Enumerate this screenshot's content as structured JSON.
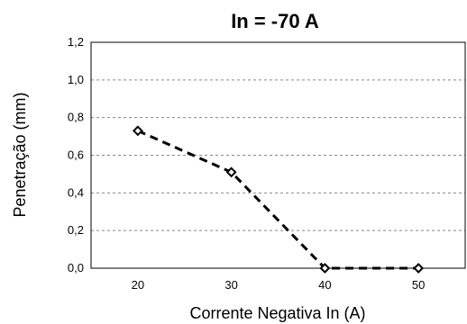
{
  "chart_data": {
    "type": "line",
    "title": "In = -70 A",
    "xlabel": "Corrente Negativa In (A)",
    "ylabel": "Penetração (mm)",
    "categories": [
      "20",
      "30",
      "40",
      "50"
    ],
    "y_ticks": [
      "0,0",
      "0,2",
      "0,4",
      "0,6",
      "0,8",
      "1,0",
      "1,2"
    ],
    "ylim": [
      0,
      1.2
    ],
    "grid": "horizontal dashed",
    "series": [
      {
        "values": [
          0.73,
          0.51,
          0.0,
          0.0
        ],
        "color": "#000000",
        "style": "dashed",
        "marker": "diamond-open"
      }
    ]
  }
}
